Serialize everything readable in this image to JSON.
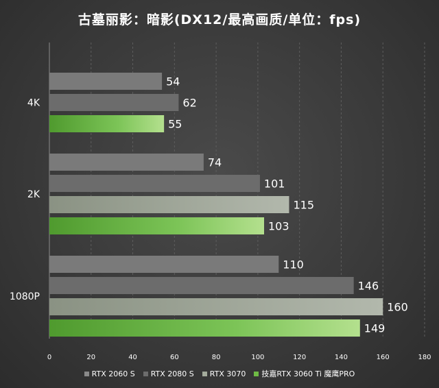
{
  "chart_data": {
    "type": "bar",
    "orientation": "horizontal",
    "title": "古墓丽影：暗影(DX12/最高画质/单位：fps)",
    "categories": [
      "4K",
      "2K",
      "1080P"
    ],
    "series": [
      {
        "name": "RTX 2060 S",
        "color": "#7a7a7a",
        "values": [
          54,
          74,
          110
        ]
      },
      {
        "name": "RTX 2080 S",
        "color": "#6c6c6c",
        "values": [
          62,
          101,
          146
        ]
      },
      {
        "name": "RTX 3070",
        "color": "#a4ab9c",
        "values": [
          null,
          115,
          160
        ]
      },
      {
        "name": "技嘉RTX 3060 Ti 魔鹰PRO",
        "color": "#6fbb45",
        "values": [
          55,
          103,
          149
        ]
      }
    ],
    "xlim": [
      0,
      180
    ],
    "xticks": [
      "0",
      "20",
      "40",
      "60",
      "80",
      "100",
      "120",
      "140",
      "160",
      "180"
    ],
    "grid": true,
    "legend": "bottom"
  }
}
